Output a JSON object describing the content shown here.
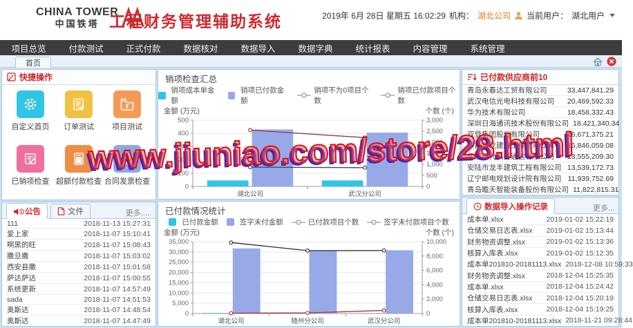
{
  "header": {
    "logo_top": "CHINA TOWER",
    "logo_bottom": "中国铁塔",
    "app_title": "工程财务管理辅助系统",
    "datetime": "2019年 6月 28日 星期五 16:02:29",
    "org_label": "机构：",
    "org_value": "湖北公司",
    "user_label": "当前用户：",
    "user_value": "湖北用户"
  },
  "nav": {
    "items": [
      "项目总览",
      "付款测试",
      "正式付款",
      "数据核对",
      "数据导入",
      "数据字典",
      "统计报表",
      "内容管理",
      "系统管理"
    ]
  },
  "tabs": {
    "home": "首页"
  },
  "quick": {
    "title": "快捷操作",
    "items": [
      {
        "label": "自定义首页",
        "icon": "gear-icon",
        "color": "#2fc5e5"
      },
      {
        "label": "订单测试",
        "icon": "order-doc-icon",
        "color": "#f0c244"
      },
      {
        "label": "项目测试",
        "icon": "folder-yuan-icon",
        "color": "#f59a56"
      },
      {
        "label": "已销项检查",
        "icon": "clipboard-check-icon",
        "color": "#ef6f9d"
      },
      {
        "label": "超额付款检查",
        "icon": "calculator-icon",
        "color": "#ef8d44"
      },
      {
        "label": "合同发票检查",
        "icon": "house-icon",
        "color": "#8fa8e4"
      }
    ]
  },
  "notices": {
    "tab_notice": "公告",
    "tab_file": "文件",
    "more": "更多.....",
    "items": [
      [
        "111",
        "2018-11-13 15:27:31"
      ],
      [
        "爱上家",
        "2018-11-07 15:10:41"
      ],
      [
        "啊黑的旺",
        "2018-11-07 15:08:43"
      ],
      [
        "撒旦撒",
        "2018-11-07 15:03:02"
      ],
      [
        "西安县撒",
        "2018-11-07 15:01:58"
      ],
      [
        "萨达萨达",
        "2018-11-07 15:00:55"
      ],
      [
        "系统更新",
        "2018-11-07 14:57:49"
      ],
      [
        "sada",
        "2018-11-07 14:51:53"
      ],
      [
        "奥斯达",
        "2018-11-07 14:48:54"
      ],
      [
        "奥斯达",
        "2018-11-07 14:47:49"
      ]
    ]
  },
  "suppliers": {
    "title": "已付款供应商前10",
    "items": [
      [
        "青岛永春达工贸有限公司",
        "33,447,841.29"
      ],
      [
        "武汉电信光电科技有限公司",
        "20,469,592.33"
      ],
      [
        "华为技术有限公司",
        "18,458,332.43"
      ],
      [
        "深圳日海通讯技术股份有限公司",
        "18,421,340.34"
      ],
      [
        "双登集团股份有限公司",
        "16,671,375.21"
      ],
      [
        "孝昌双龙建筑工程有限公司",
        "15,846,059.08"
      ],
      [
        "武汉现代高科通信有限公司",
        "13,555,209.30"
      ],
      [
        "安陆市龙丰建筑工程有限公司",
        "13,539,172.73"
      ],
      [
        "辽宁邮电规划设计院有限公司",
        "11,939,752.69"
      ],
      [
        "青岛瞻天智能装备股份有限公司",
        "11,822,815.31"
      ]
    ]
  },
  "imports": {
    "title": "数据导入操作记录",
    "more": "更多...",
    "items": [
      [
        "成本单.xlsx",
        "2019-01-02 15:22:19"
      ],
      [
        "仓储交易日志表.xlsx",
        "2019-01-02 15:13:44"
      ],
      [
        "财务物资调整.xlsx",
        "2019-01-02 15:13:36"
      ],
      [
        "核算入库表.xlsx",
        "2019-01-02 15:12:35"
      ],
      [
        "成本单201810-20181113.xlsx",
        "2018-12-08 10:59:33"
      ],
      [
        "财务物资调整.xlsx",
        "2018-12-04 15:25:35"
      ],
      [
        "成本单.xlsx",
        "2018-12-04 15:24:42"
      ],
      [
        "仓储交易日志表.xlsx",
        "2018-12-04 15:20:19"
      ],
      [
        "核算入库表.xlsx",
        "2018-12-04 15:19:25"
      ],
      [
        "成本单201810-20181113.xlsx",
        "2018-11-21 09:28:44"
      ]
    ]
  },
  "watermark": "www.jiuniao.com/store/28.html",
  "colors": {
    "brand_red": "#d0282d",
    "nav_bg": "#3d3d3d",
    "content_bg": "#cfe0f0",
    "panel_border": "#a9c7e2",
    "org_orange": "#e07a1f",
    "bar_cyan": "#2fc5e5",
    "bar_blue": "#98a9e8",
    "watermark_red": "#e21212",
    "watermark_blue": "#2b2bd5"
  },
  "chart_data": [
    {
      "type": "bar",
      "title": "销项检查汇总",
      "categories": [
        "湖北公司",
        "武汉分公司"
      ],
      "axis_left": {
        "label": "金额 (万元)",
        "min": 0,
        "max": 500,
        "step": 100
      },
      "axis_right": {
        "label": "个数 (个)",
        "min": 0,
        "max": 3000,
        "step": 500
      },
      "grid": true,
      "legend_position": "top",
      "series": [
        {
          "name": "销项成本单金额",
          "kind": "bar",
          "axis": "left",
          "color": "#2fc5e5",
          "values": [
            45,
            45
          ]
        },
        {
          "name": "销项已付款金额",
          "kind": "bar",
          "axis": "left",
          "color": "#98a9e8",
          "values": [
            430,
            406
          ]
        },
        {
          "name": "销项不为0项目个数",
          "kind": "line",
          "axis": "right",
          "color": "#8b4242",
          "values": [
            2550,
            2210
          ]
        },
        {
          "name": "销项已付款项目个数",
          "kind": "line",
          "axis": "right",
          "color": "#3f4a63",
          "values": [
            870,
            850
          ]
        }
      ]
    },
    {
      "type": "bar",
      "title": "已付款情况统计",
      "categories": [
        "湖北公司",
        "随州分公司",
        "武汉分公司"
      ],
      "axis_left": {
        "label": "金额 (万元)",
        "min": 0,
        "max": 35000,
        "step": 5000
      },
      "axis_right": {
        "label": "个数 (个)",
        "min": 0,
        "max": 10000,
        "step": 2000
      },
      "grid": true,
      "legend_position": "top",
      "series": [
        {
          "name": "已付款金额",
          "kind": "bar",
          "axis": "left",
          "color": "#2fc5e5",
          "values": [
            260,
            180,
            200
          ]
        },
        {
          "name": "签字未付金额",
          "kind": "bar",
          "axis": "left",
          "color": "#98a9e8",
          "values": [
            31700,
            30800,
            30800
          ]
        },
        {
          "name": "已付款项目个数",
          "kind": "line",
          "axis": "right",
          "color": "#3c3c3c",
          "values": [
            9880,
            8760,
            8780
          ]
        },
        {
          "name": "签字未付款项目个数",
          "kind": "line",
          "axis": "right",
          "color": "#b23a3a",
          "values": [
            40,
            90,
            420
          ]
        }
      ]
    }
  ]
}
